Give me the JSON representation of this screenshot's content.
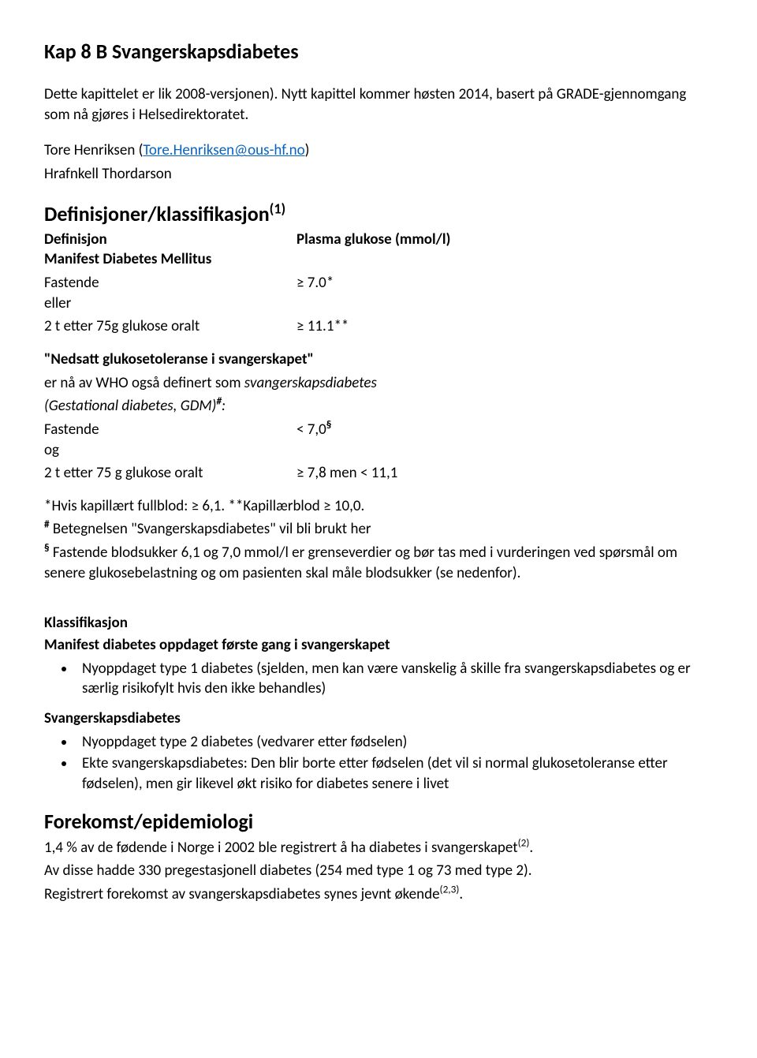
{
  "title": "Kap 8 B Svangerskapsdiabetes",
  "intro": {
    "line1": "Dette kapittelet er lik 2008-versjonen). Nytt kapittel kommer høsten 2014, basert på GRADE-gjennomgang som nå gjøres i Helsedirektoratet.",
    "author1_pre": "Tore Henriksen (",
    "author1_link": "Tore.Henriksen@ous-hf.no",
    "author1_post": ")",
    "author2": "Hrafnkell Thordarson"
  },
  "definitions": {
    "heading_pre": "Definisjoner/klassifikasjon",
    "heading_sup": "(1)",
    "col_def": "Definisjon",
    "col_val": "Plasma glukose (mmol/l)",
    "manifest_label": "Manifest Diabetes Mellitus",
    "fastende_label": "Fastende",
    "fastende_val": "≥ 7.0*",
    "eller": "eller",
    "oral_label": "2 t etter 75g glukose oralt",
    "oral_val": "≥ 11.1**"
  },
  "nedsatt": {
    "title": "\"Nedsatt glukosetoleranse i svangerskapet\"",
    "line2_pre": "er nå av WHO også definert som ",
    "line2_italic": "svangerskapsdiabetes",
    "line3_italic": "(Gestational diabetes, GDM)",
    "line3_sup": "#",
    "line3_colon": ":",
    "fastende_label": "Fastende",
    "fastende_val_pre": "< 7,0",
    "fastende_val_sup": "§",
    "og": "og",
    "oral_label": "2 t etter 75 g glukose oralt",
    "oral_val": "≥ 7,8  men < 11,1"
  },
  "footnotes": {
    "star": "*Hvis kapillært fullblod: ≥ 6,1.  **Kapillærblod ≥ 10,0.",
    "hash_sup": "#",
    "hash_text": " Betegnelsen \"Svangerskapsdiabetes\" vil bli brukt her",
    "sect_sup": "§",
    "sect_text": " Fastende blodsukker 6,1 og 7,0 mmol/l er grenseverdier og bør tas med i vurderingen ved spørsmål om senere glukosebelastning og om pasienten skal måle blodsukker (se nedenfor)."
  },
  "klass": {
    "heading": "Klassifikasjon",
    "sub1": "Manifest diabetes oppdaget første gang i svangerskapet",
    "bul1": "Nyoppdaget type 1 diabetes (sjelden, men kan være vanskelig å skille fra svangerskapsdiabetes og er særlig risikofylt hvis den ikke behandles)",
    "sub2": "Svangerskapsdiabetes",
    "bul2": "Nyoppdaget type 2 diabetes (vedvarer etter fødselen)",
    "bul3": "Ekte svangerskapsdiabetes: Den blir borte etter fødselen (det vil si normal glukosetoleranse etter fødselen), men gir likevel økt risiko for diabetes senere i livet"
  },
  "epi": {
    "heading": "Forekomst/epidemiologi",
    "p1_pre": "1,4 % av de fødende i Norge i 2002 ble registrert å ha diabetes i svangerskapet",
    "p1_sup": "(2)",
    "p1_post": ".",
    "p2": "Av disse hadde 330 pregestasjonell diabetes (254 med type 1 og 73 med type 2).",
    "p3_pre": "Registrert forekomst av svangerskapsdiabetes synes jevnt økende",
    "p3_sup": "(2,3)",
    "p3_post": "."
  }
}
